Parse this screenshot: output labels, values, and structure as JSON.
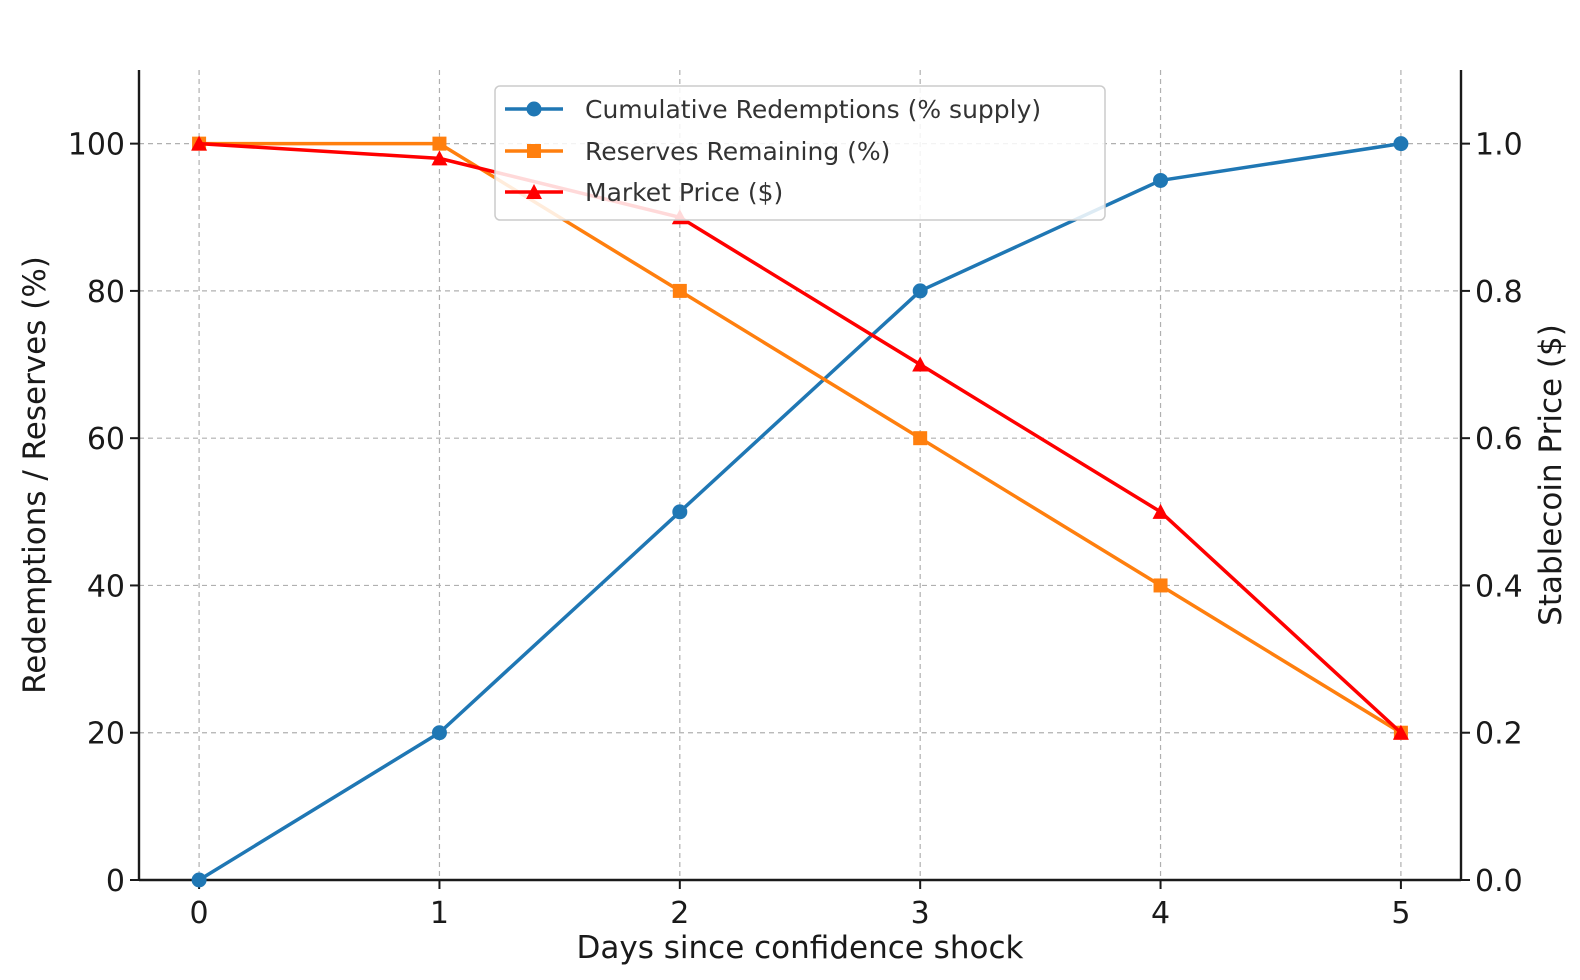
{
  "chart_data": {
    "type": "line",
    "title": "",
    "xlabel": "Days since confidence shock",
    "ylabel": "Redemptions / Reserves (%)",
    "y2label": "Stablecoin Price ($)",
    "x": [
      0,
      1,
      2,
      3,
      4,
      5
    ],
    "x_ticks": [
      "0",
      "1",
      "2",
      "3",
      "4",
      "5"
    ],
    "xlim": [
      -0.25,
      5.25
    ],
    "ylim": [
      0,
      110
    ],
    "y_ticks": [
      "0",
      "20",
      "40",
      "60",
      "80",
      "100"
    ],
    "y2lim": [
      0,
      1.1
    ],
    "y2_ticks": [
      "0.0",
      "0.2",
      "0.4",
      "0.6",
      "0.8",
      "1.0"
    ],
    "grid": true,
    "legend_position": "top-center",
    "series": [
      {
        "name": "Cumulative Redemptions (% supply)",
        "axis": "left",
        "color": "#1f77b4",
        "marker": "circle",
        "values": [
          0,
          20,
          50,
          80,
          95,
          100
        ]
      },
      {
        "name": "Reserves Remaining (%)",
        "axis": "left",
        "color": "#ff7f0e",
        "marker": "square",
        "values": [
          100,
          100,
          80,
          60,
          40,
          20
        ]
      },
      {
        "name": "Market Price ($)",
        "axis": "right",
        "color": "#ff0000",
        "marker": "triangle",
        "values": [
          1.0,
          0.98,
          0.9,
          0.7,
          0.5,
          0.2
        ]
      }
    ]
  }
}
